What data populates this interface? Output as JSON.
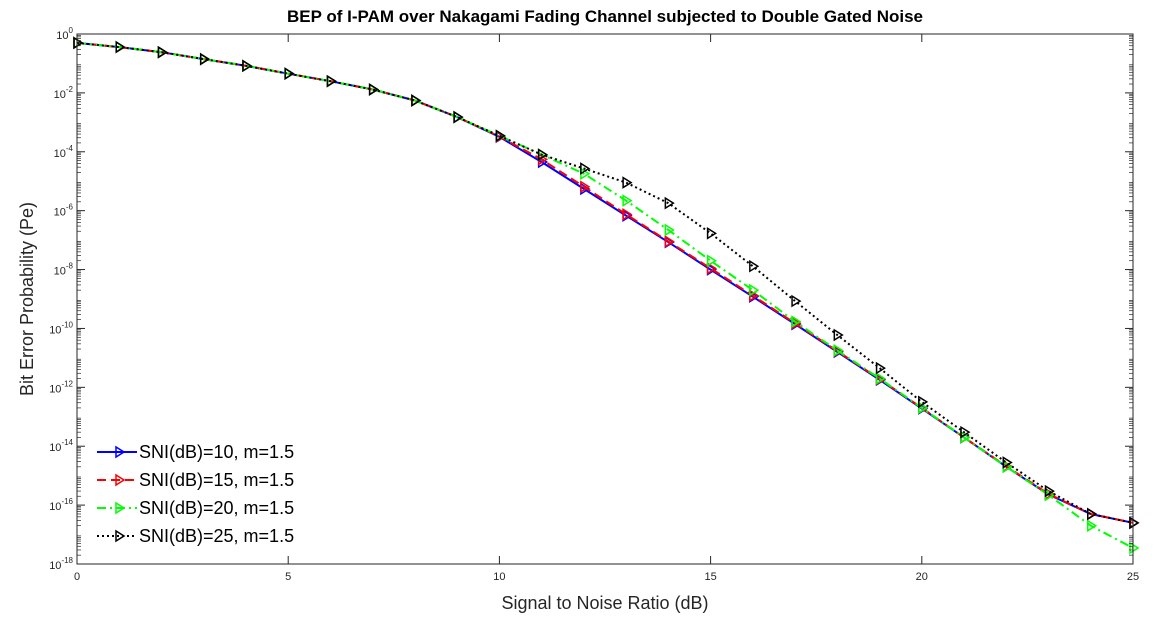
{
  "chart_data": {
    "type": "line",
    "title": "BEP of I-PAM over Nakagami Fading Channel subjected to Double Gated Noise",
    "xlabel": "Signal to Noise Ratio (dB)",
    "ylabel": "Bit Error Probability (Pe)",
    "xlim": [
      0,
      25
    ],
    "ylim": [
      1e-18,
      1
    ],
    "yscale": "log",
    "xticks": [
      0,
      5,
      10,
      15,
      20,
      25
    ],
    "ytick_exponents": [
      0,
      -2,
      -4,
      -6,
      -8,
      -10,
      -12,
      -14,
      -16,
      -18
    ],
    "ytick_base": "10",
    "grid": false,
    "legend_position": "bottom-left",
    "x": [
      0,
      1,
      2,
      3,
      4,
      5,
      6,
      7,
      8,
      9,
      10,
      11,
      12,
      13,
      14,
      15,
      16,
      17,
      18,
      19,
      20,
      21,
      22,
      23,
      24,
      25
    ],
    "series": [
      {
        "name": "SNI(dB)=10, m=1.5",
        "color": "#0000ff",
        "dash": "solid",
        "values": [
          0.5,
          0.36,
          0.24,
          0.14,
          0.083,
          0.045,
          0.025,
          0.013,
          0.0055,
          0.0015,
          0.00032,
          4.5e-05,
          5.5e-06,
          6.8e-07,
          8.5e-08,
          1e-08,
          1.2e-09,
          1.4e-10,
          1.6e-11,
          1.8e-12,
          1.9e-13,
          2e-14,
          2e-15,
          2.3e-16,
          5e-17,
          2.5e-17
        ]
      },
      {
        "name": "SNI(dB)=15, m=1.5",
        "color": "#ff0000",
        "dash": "dashed",
        "values": [
          0.5,
          0.36,
          0.24,
          0.14,
          0.083,
          0.045,
          0.025,
          0.013,
          0.0055,
          0.0015,
          0.00033,
          5.5e-05,
          6.5e-06,
          7.5e-07,
          9e-08,
          1.1e-08,
          1.3e-09,
          1.5e-10,
          1.7e-11,
          1.9e-12,
          2e-13,
          2e-14,
          2.1e-15,
          2.4e-16,
          5e-17,
          2.5e-17
        ]
      },
      {
        "name": "SNI(dB)=20, m=1.5",
        "color": "#00ff00",
        "dash": "dashdot",
        "values": [
          0.5,
          0.36,
          0.24,
          0.14,
          0.083,
          0.045,
          0.025,
          0.013,
          0.0055,
          0.0015,
          0.00035,
          8e-05,
          1.8e-05,
          2.2e-06,
          2.2e-07,
          2e-08,
          2e-09,
          1.7e-10,
          1.8e-11,
          2e-12,
          2e-13,
          2e-14,
          2e-15,
          2.2e-16,
          2e-17,
          3.5e-18
        ]
      },
      {
        "name": "SNI(dB)=25, m=1.5",
        "color": "#000000",
        "dash": "dotted",
        "values": [
          0.5,
          0.36,
          0.24,
          0.14,
          0.083,
          0.045,
          0.025,
          0.013,
          0.0055,
          0.0015,
          0.00035,
          8e-05,
          2.7e-05,
          9e-06,
          1.8e-06,
          1.7e-07,
          1.3e-08,
          8.5e-10,
          6e-11,
          4.5e-12,
          3.2e-13,
          3e-14,
          2.8e-15,
          3e-16,
          5e-17,
          2.5e-17
        ]
      }
    ]
  }
}
